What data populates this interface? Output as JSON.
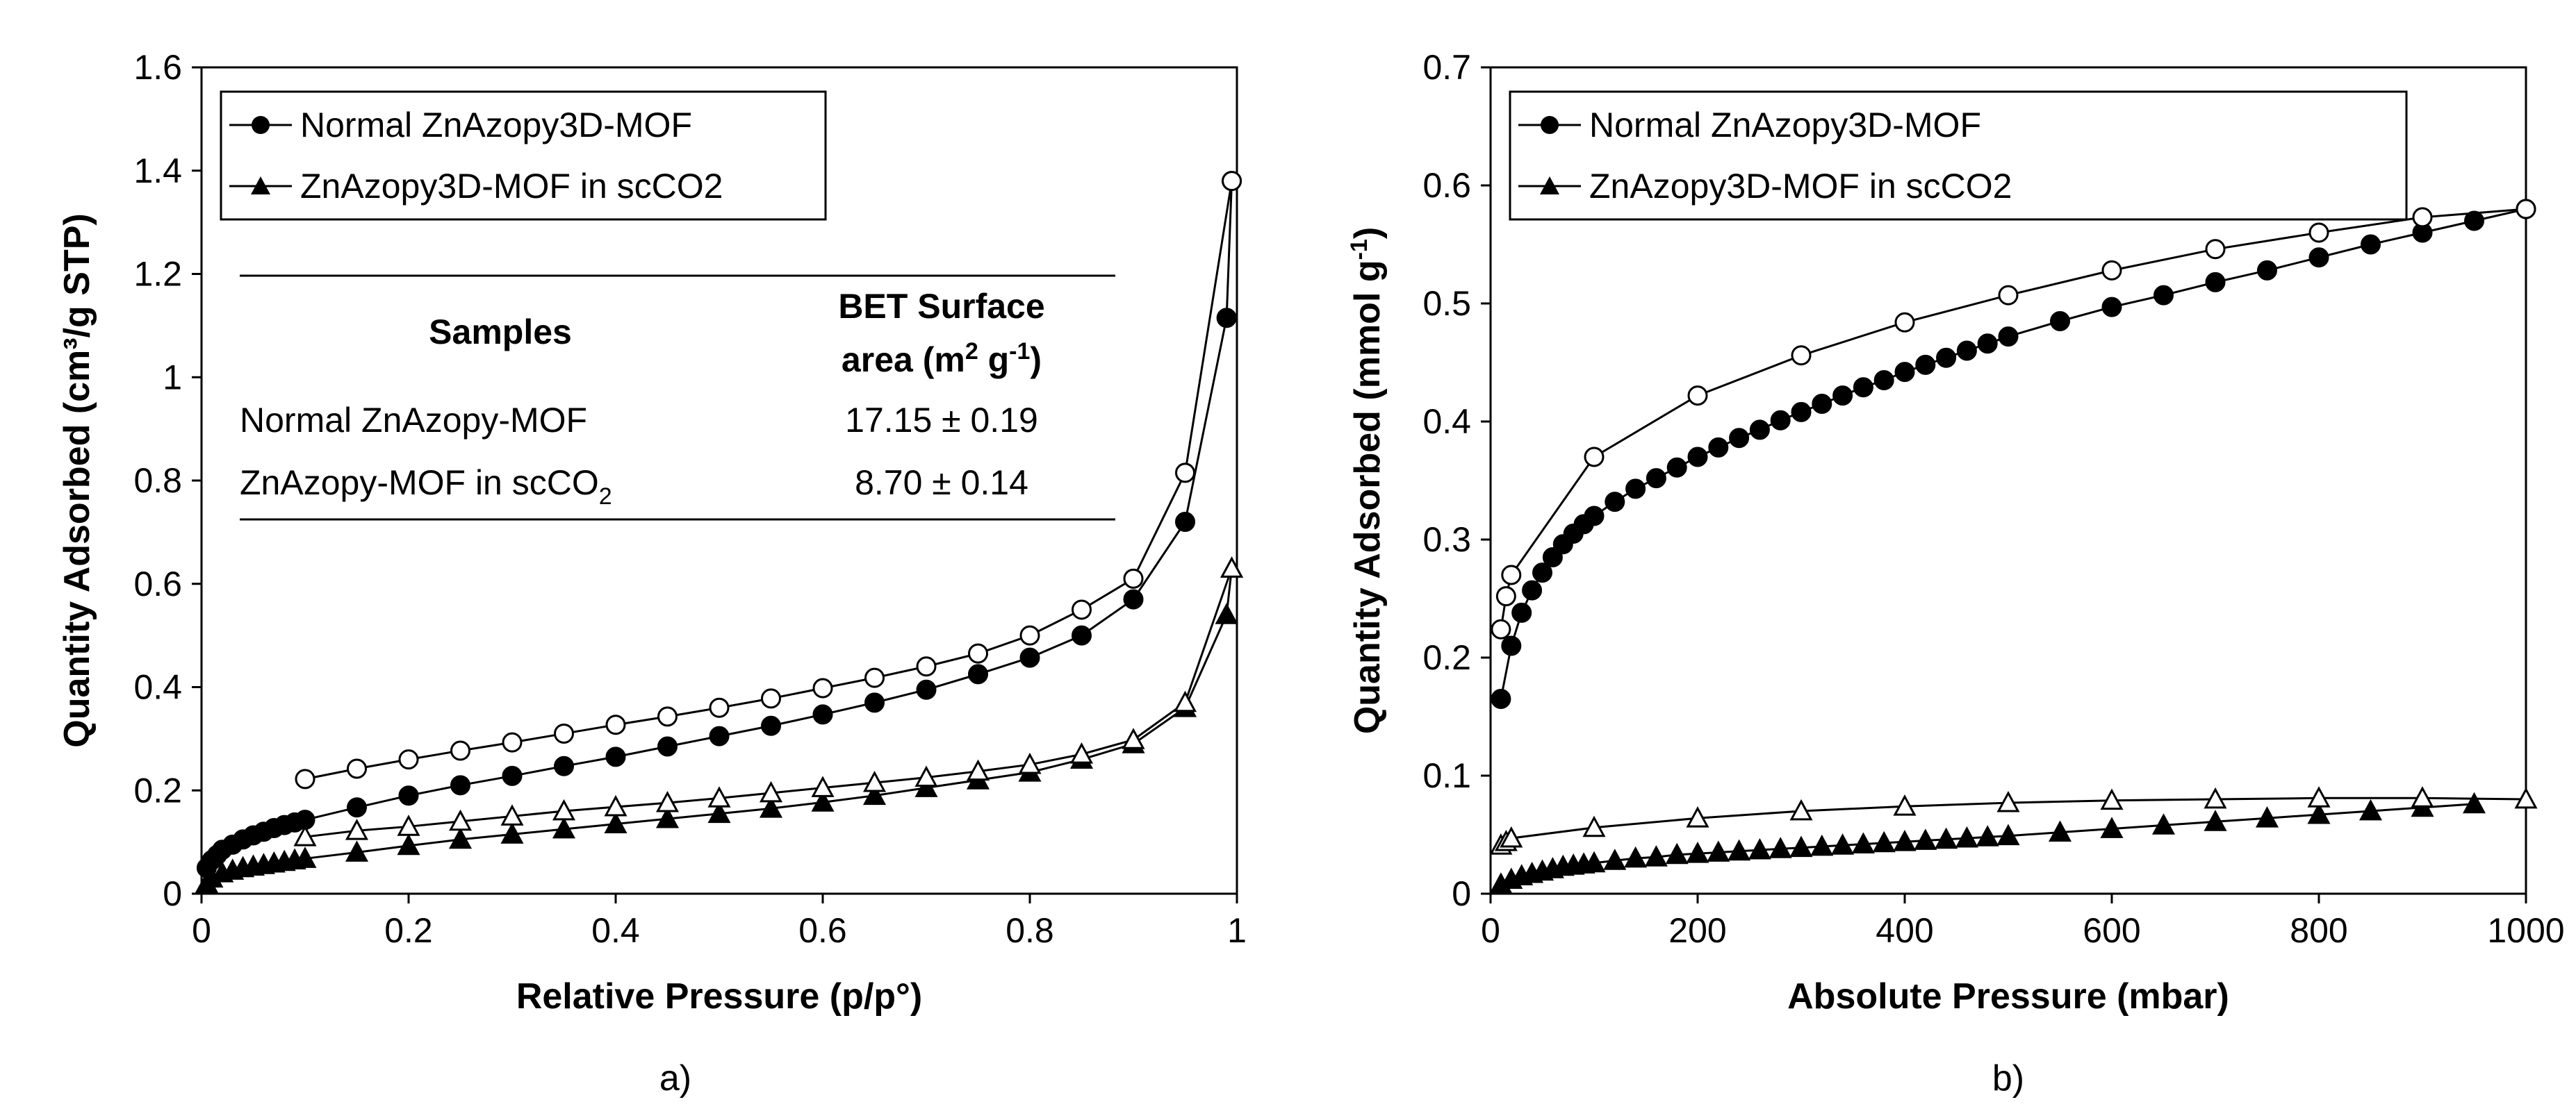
{
  "chart_data": [
    {
      "type": "scatter",
      "panel_label": "a)",
      "xlabel": "Relative Pressure (p/p°)",
      "ylabel": "Quantity Adsorbed (cm³/g STP)",
      "xlim": [
        0,
        1
      ],
      "ylim": [
        0,
        1.6
      ],
      "xticks": [
        0,
        0.2,
        0.4,
        0.6,
        0.8,
        1
      ],
      "xtick_labels": [
        "0",
        "0.2",
        "0.4",
        "0.6",
        "0.8",
        "1"
      ],
      "yticks": [
        0,
        0.2,
        0.4,
        0.6,
        0.8,
        1,
        1.2,
        1.4,
        1.6
      ],
      "ytick_labels": [
        "0",
        "0.2",
        "0.4",
        "0.6",
        "0.8",
        "1",
        "1.2",
        "1.4",
        "1.6"
      ],
      "legend": {
        "position": "top-left",
        "entries": [
          {
            "label": "Normal ZnAzopy3D-MOF",
            "marker": "circle"
          },
          {
            "label": "ZnAzopy3D-MOF in scCO2",
            "marker": "triangle"
          }
        ]
      },
      "inset_table": {
        "headers": [
          "Samples",
          "BET Surface",
          "area (m",
          "2",
          " g",
          "-1",
          ")"
        ],
        "rows": [
          {
            "sample": "Normal ZnAzopy-MOF",
            "value": "17.15 ± 0.19"
          },
          {
            "sample": "ZnAzopy-MOF in scCO",
            "sample_sub": "2",
            "value": "8.70 ± 0.14"
          }
        ]
      },
      "series": [
        {
          "name": "Normal ZnAzopy3D-MOF adsorption",
          "marker": "circle",
          "filled": true,
          "x": [
            0.005,
            0.01,
            0.015,
            0.02,
            0.03,
            0.04,
            0.05,
            0.06,
            0.07,
            0.08,
            0.09,
            0.1,
            0.15,
            0.2,
            0.25,
            0.3,
            0.35,
            0.4,
            0.45,
            0.5,
            0.55,
            0.6,
            0.65,
            0.7,
            0.75,
            0.8,
            0.85,
            0.9,
            0.95,
            0.99,
            0.995
          ],
          "y": [
            0.05,
            0.065,
            0.075,
            0.085,
            0.095,
            0.105,
            0.113,
            0.12,
            0.127,
            0.133,
            0.138,
            0.143,
            0.167,
            0.19,
            0.21,
            0.228,
            0.247,
            0.265,
            0.285,
            0.305,
            0.325,
            0.347,
            0.37,
            0.395,
            0.425,
            0.457,
            0.5,
            0.57,
            0.72,
            1.115,
            1.38
          ]
        },
        {
          "name": "Normal ZnAzopy3D-MOF desorption",
          "marker": "circle",
          "filled": false,
          "x": [
            0.1,
            0.15,
            0.2,
            0.25,
            0.3,
            0.35,
            0.4,
            0.45,
            0.5,
            0.55,
            0.6,
            0.65,
            0.7,
            0.75,
            0.8,
            0.85,
            0.9,
            0.95,
            0.995
          ],
          "y": [
            0.222,
            0.242,
            0.26,
            0.277,
            0.293,
            0.31,
            0.327,
            0.343,
            0.36,
            0.378,
            0.398,
            0.418,
            0.44,
            0.465,
            0.5,
            0.55,
            0.61,
            0.815,
            1.38
          ]
        },
        {
          "name": "ZnAzopy3D-MOF in scCO2 adsorption",
          "marker": "triangle",
          "filled": true,
          "x": [
            0.005,
            0.01,
            0.02,
            0.03,
            0.04,
            0.05,
            0.06,
            0.07,
            0.08,
            0.09,
            0.1,
            0.15,
            0.2,
            0.25,
            0.3,
            0.35,
            0.4,
            0.45,
            0.5,
            0.55,
            0.6,
            0.65,
            0.7,
            0.75,
            0.8,
            0.85,
            0.9,
            0.95,
            0.99,
            0.995
          ],
          "y": [
            0.02,
            0.03,
            0.04,
            0.045,
            0.05,
            0.053,
            0.056,
            0.059,
            0.062,
            0.065,
            0.068,
            0.08,
            0.093,
            0.105,
            0.115,
            0.125,
            0.135,
            0.145,
            0.155,
            0.165,
            0.177,
            0.19,
            0.205,
            0.22,
            0.235,
            0.26,
            0.29,
            0.36,
            0.54,
            0.63
          ]
        },
        {
          "name": "ZnAzopy3D-MOF in scCO2 desorption",
          "marker": "triangle",
          "filled": false,
          "x": [
            0.1,
            0.15,
            0.2,
            0.25,
            0.3,
            0.35,
            0.4,
            0.45,
            0.5,
            0.55,
            0.6,
            0.65,
            0.7,
            0.75,
            0.8,
            0.85,
            0.9,
            0.95,
            0.995
          ],
          "y": [
            0.11,
            0.122,
            0.13,
            0.14,
            0.15,
            0.16,
            0.168,
            0.176,
            0.185,
            0.195,
            0.205,
            0.215,
            0.225,
            0.237,
            0.25,
            0.27,
            0.298,
            0.37,
            0.63
          ]
        }
      ]
    },
    {
      "type": "scatter",
      "panel_label": "b)",
      "xlabel": "Absolute Pressure (mbar)",
      "ylabel": "Quantity Adsorbed (mmol g",
      "ylabel_sup": "-1",
      "ylabel_end": ")",
      "xlim": [
        0,
        1000
      ],
      "ylim": [
        0,
        0.7
      ],
      "xticks": [
        0,
        200,
        400,
        600,
        800,
        1000
      ],
      "xtick_labels": [
        "0",
        "200",
        "400",
        "600",
        "800",
        "1000"
      ],
      "yticks": [
        0,
        0.1,
        0.2,
        0.3,
        0.4,
        0.5,
        0.6,
        0.7
      ],
      "ytick_labels": [
        "0",
        "0.1",
        "0.2",
        "0.3",
        "0.4",
        "0.5",
        "0.6",
        "0.7"
      ],
      "legend": {
        "position": "top-left",
        "entries": [
          {
            "label": "Normal ZnAzopy3D-MOF",
            "marker": "circle"
          },
          {
            "label": "ZnAzopy3D-MOF in scCO2",
            "marker": "triangle"
          }
        ]
      },
      "series": [
        {
          "name": "Normal ZnAzopy3D-MOF adsorption",
          "marker": "circle",
          "filled": true,
          "x": [
            10,
            20,
            30,
            40,
            50,
            60,
            70,
            80,
            90,
            100,
            120,
            140,
            160,
            180,
            200,
            220,
            240,
            260,
            280,
            300,
            320,
            340,
            360,
            380,
            400,
            420,
            440,
            460,
            480,
            500,
            550,
            600,
            650,
            700,
            750,
            800,
            850,
            900,
            950,
            1000
          ],
          "y": [
            0.165,
            0.21,
            0.238,
            0.257,
            0.272,
            0.285,
            0.296,
            0.305,
            0.313,
            0.32,
            0.332,
            0.343,
            0.352,
            0.361,
            0.37,
            0.378,
            0.386,
            0.393,
            0.401,
            0.408,
            0.415,
            0.422,
            0.429,
            0.435,
            0.442,
            0.448,
            0.454,
            0.46,
            0.466,
            0.472,
            0.485,
            0.497,
            0.507,
            0.518,
            0.528,
            0.539,
            0.55,
            0.56,
            0.57,
            0.58
          ]
        },
        {
          "name": "Normal ZnAzopy3D-MOF desorption",
          "marker": "circle",
          "filled": false,
          "x": [
            10,
            15,
            20,
            100,
            200,
            300,
            400,
            500,
            600,
            700,
            800,
            900,
            1000
          ],
          "y": [
            0.224,
            0.252,
            0.27,
            0.37,
            0.422,
            0.456,
            0.484,
            0.507,
            0.528,
            0.546,
            0.56,
            0.573,
            0.58
          ]
        },
        {
          "name": "ZnAzopy3D-MOF in scCO2 adsorption",
          "marker": "triangle",
          "filled": true,
          "x": [
            10,
            20,
            30,
            40,
            50,
            60,
            70,
            80,
            90,
            100,
            120,
            140,
            160,
            180,
            200,
            220,
            240,
            260,
            280,
            300,
            320,
            340,
            360,
            380,
            400,
            420,
            440,
            460,
            480,
            500,
            550,
            600,
            650,
            700,
            750,
            800,
            850,
            900,
            950
          ],
          "y": [
            0.008,
            0.012,
            0.015,
            0.017,
            0.019,
            0.021,
            0.023,
            0.024,
            0.025,
            0.026,
            0.028,
            0.03,
            0.031,
            0.033,
            0.034,
            0.035,
            0.036,
            0.037,
            0.038,
            0.039,
            0.04,
            0.041,
            0.042,
            0.043,
            0.044,
            0.045,
            0.046,
            0.047,
            0.048,
            0.049,
            0.052,
            0.055,
            0.058,
            0.061,
            0.064,
            0.067,
            0.07,
            0.073,
            0.076
          ]
        },
        {
          "name": "ZnAzopy3D-MOF in scCO2 desorption",
          "marker": "triangle",
          "filled": false,
          "x": [
            10,
            15,
            20,
            100,
            200,
            300,
            400,
            500,
            600,
            700,
            800,
            900,
            1000
          ],
          "y": [
            0.041,
            0.044,
            0.047,
            0.056,
            0.064,
            0.07,
            0.074,
            0.077,
            0.079,
            0.08,
            0.081,
            0.081,
            0.08
          ]
        }
      ]
    }
  ]
}
